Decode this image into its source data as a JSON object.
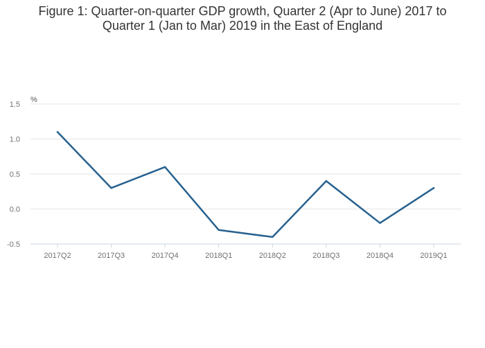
{
  "chart_data": {
    "type": "line",
    "title_lines": [
      "Figure 1: Quarter-on-quarter GDP growth, Quarter 2 (Apr to June) 2017 to",
      "Quarter 1 (Jan to Mar) 2019 in the East of England"
    ],
    "ylabel": "%",
    "xlabel": "",
    "categories": [
      "2017Q2",
      "2017Q3",
      "2017Q4",
      "2018Q1",
      "2018Q2",
      "2018Q3",
      "2018Q4",
      "2019Q1"
    ],
    "series": [
      {
        "values": [
          1.1,
          0.3,
          0.6,
          -0.3,
          -0.4,
          0.4,
          -0.2,
          0.3
        ]
      }
    ],
    "ylim": [
      -0.5,
      1.5
    ],
    "yticks": [
      -0.5,
      0.0,
      0.5,
      1.0,
      1.5
    ],
    "ytick_labels": [
      "-0.5",
      "0.0",
      "0.5",
      "1.0",
      "1.5"
    ],
    "grid": true,
    "line_color": "#27618f",
    "grid_color": "#e6e6e6",
    "axis_color": "#c8d4e0"
  }
}
